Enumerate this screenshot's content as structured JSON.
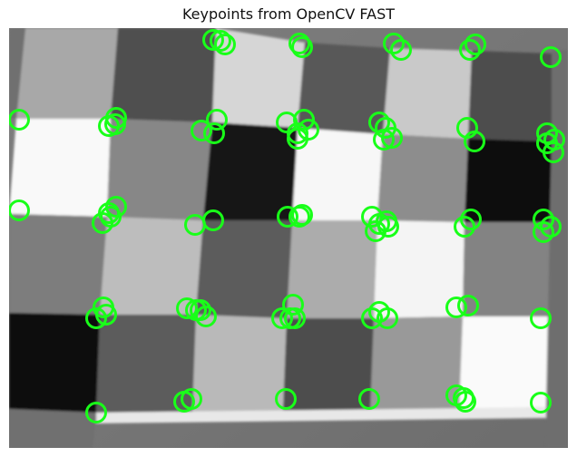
{
  "title": "Keypoints from OpenCV FAST",
  "image": {
    "description_tag": "checkerboard-grayscale",
    "background_colors": {
      "light": "#d8d8d8",
      "white": "#f8f8f8",
      "mid": "#8a8a8a",
      "dark": "#4a4a4a",
      "black": "#111111"
    }
  },
  "keypoints": {
    "color": "#19ff19",
    "count": 78
  }
}
